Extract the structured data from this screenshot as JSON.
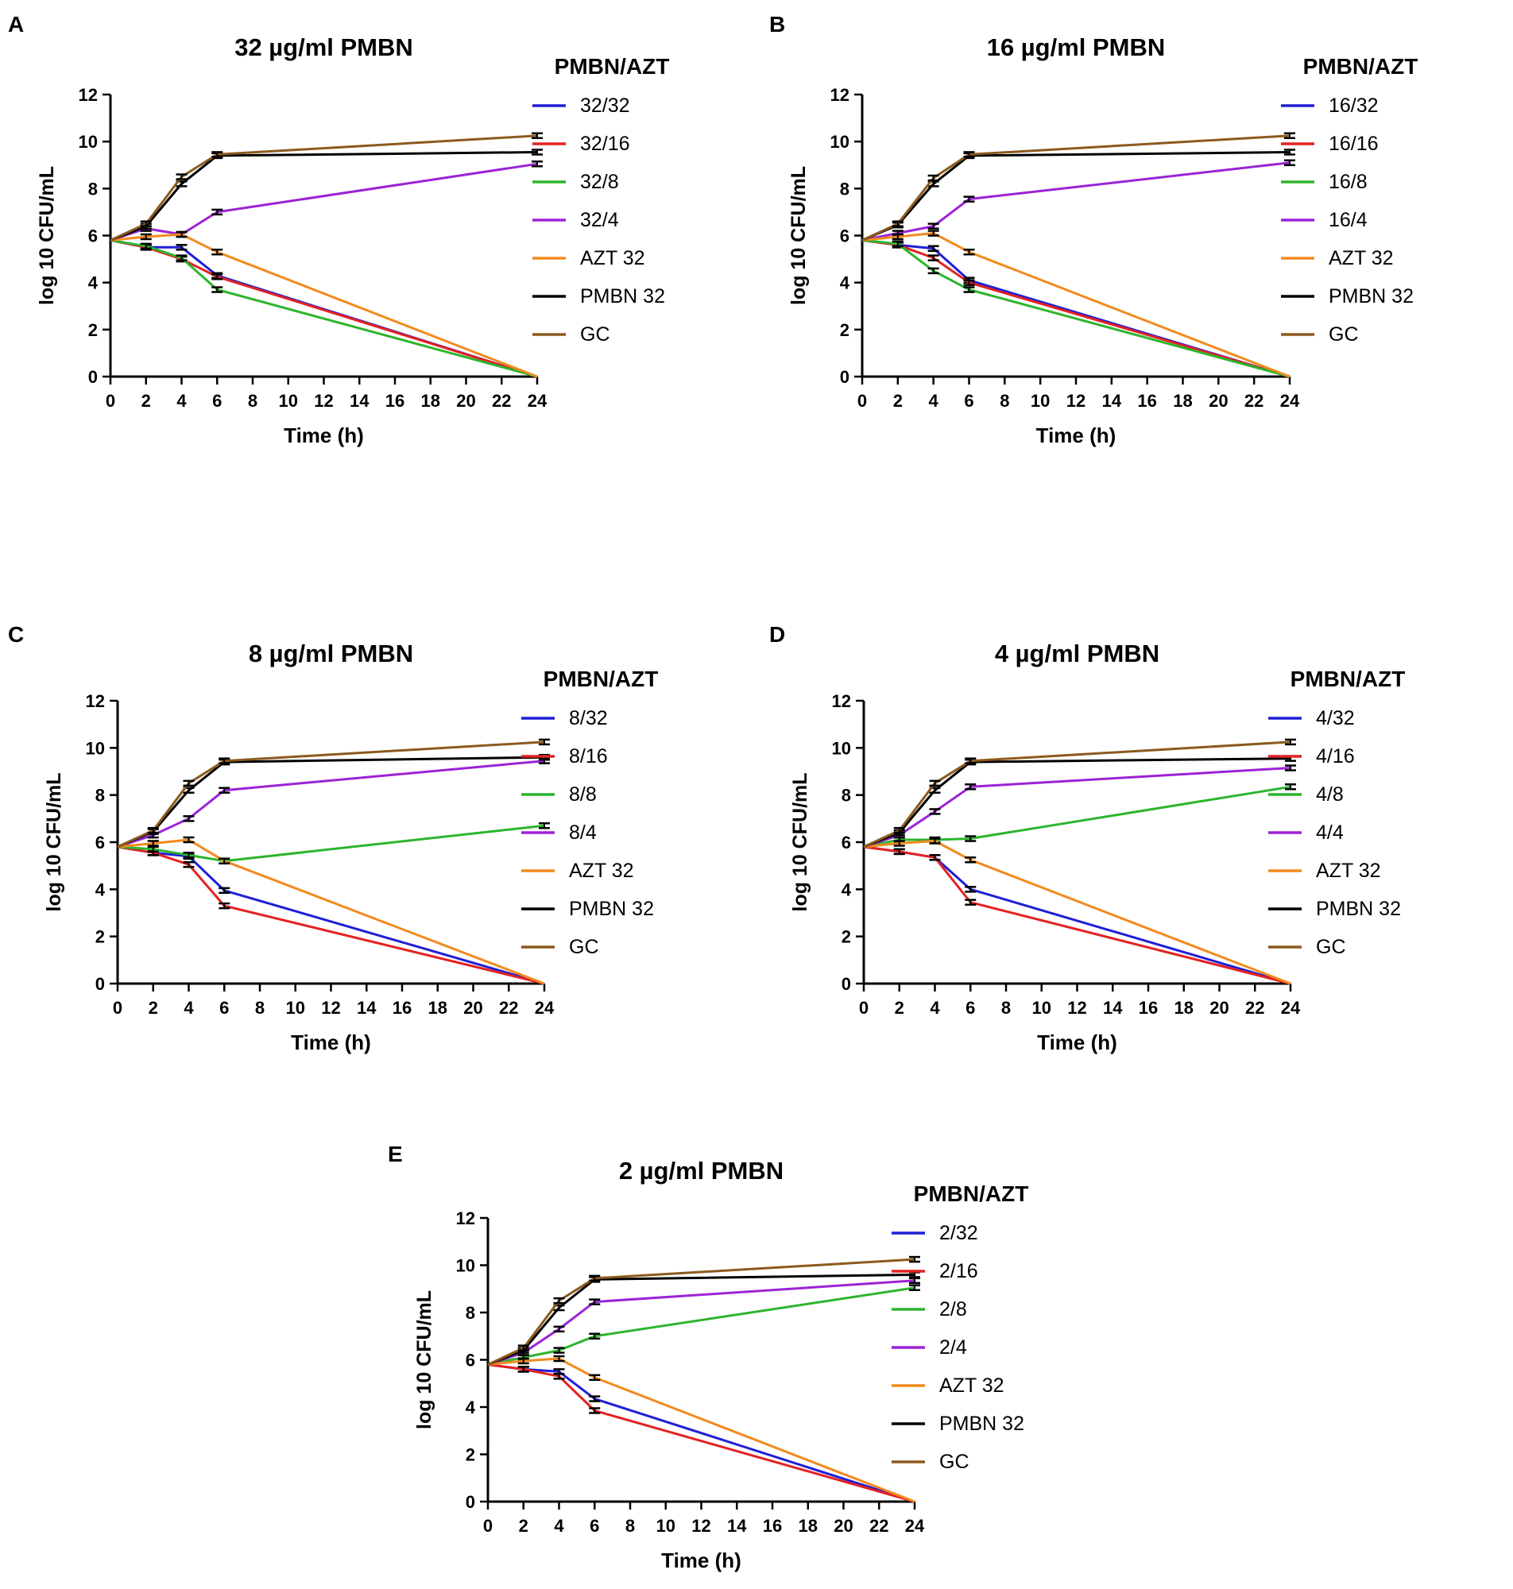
{
  "figure": {
    "panels": [
      "A",
      "B",
      "C",
      "D",
      "E"
    ]
  },
  "chart_data": [
    {
      "type": "line",
      "panel_label": "A",
      "title": "32 µg/ml PMBN",
      "xlabel": "Time (h)",
      "ylabel": "log 10 CFU/mL",
      "xlim": [
        0,
        24
      ],
      "ylim": [
        0,
        12
      ],
      "xticks": [
        0,
        2,
        4,
        6,
        8,
        10,
        12,
        14,
        16,
        18,
        20,
        22,
        24
      ],
      "yticks": [
        0,
        2,
        4,
        6,
        8,
        10,
        12
      ],
      "legend_title": "PMBN/AZT",
      "legend_position": "right",
      "x": [
        0,
        2,
        4,
        6,
        24
      ],
      "series": [
        {
          "name": "32/32",
          "color": "#1f1fd6",
          "values": [
            5.8,
            5.5,
            5.5,
            4.3,
            0
          ]
        },
        {
          "name": "32/16",
          "color": "#e32222",
          "values": [
            5.8,
            5.5,
            5.0,
            4.25,
            0
          ]
        },
        {
          "name": "32/8",
          "color": "#2db52d",
          "values": [
            5.8,
            5.55,
            5.05,
            3.7,
            0
          ]
        },
        {
          "name": "32/4",
          "color": "#9b23d6",
          "values": [
            5.8,
            6.3,
            6.05,
            7.0,
            9.05
          ]
        },
        {
          "name": "AZT 32",
          "color": "#f28a1e",
          "values": [
            5.8,
            5.95,
            6.05,
            5.3,
            0
          ]
        },
        {
          "name": "PMBN 32",
          "color": "#000000",
          "values": [
            5.8,
            6.4,
            8.2,
            9.4,
            9.55
          ]
        },
        {
          "name": "GC",
          "color": "#8b5a1f",
          "values": [
            5.8,
            6.5,
            8.5,
            9.45,
            10.25
          ]
        }
      ]
    },
    {
      "type": "line",
      "panel_label": "B",
      "title": "16 µg/ml PMBN",
      "xlabel": "Time (h)",
      "ylabel": "log 10 CFU/mL",
      "xlim": [
        0,
        24
      ],
      "ylim": [
        0,
        12
      ],
      "xticks": [
        0,
        2,
        4,
        6,
        8,
        10,
        12,
        14,
        16,
        18,
        20,
        22,
        24
      ],
      "yticks": [
        0,
        2,
        4,
        6,
        8,
        10,
        12
      ],
      "legend_title": "PMBN/AZT",
      "legend_position": "right",
      "x": [
        0,
        2,
        4,
        6,
        24
      ],
      "series": [
        {
          "name": "16/32",
          "color": "#1f1fd6",
          "values": [
            5.8,
            5.6,
            5.45,
            4.1,
            0
          ]
        },
        {
          "name": "16/16",
          "color": "#e32222",
          "values": [
            5.8,
            5.6,
            5.05,
            4.0,
            0
          ]
        },
        {
          "name": "16/8",
          "color": "#2db52d",
          "values": [
            5.8,
            5.65,
            4.5,
            3.7,
            0
          ]
        },
        {
          "name": "16/4",
          "color": "#9b23d6",
          "values": [
            5.8,
            6.1,
            6.4,
            7.55,
            9.1
          ]
        },
        {
          "name": "AZT 32",
          "color": "#f28a1e",
          "values": [
            5.8,
            5.95,
            6.1,
            5.3,
            0
          ]
        },
        {
          "name": "PMBN 32",
          "color": "#000000",
          "values": [
            5.8,
            6.45,
            8.2,
            9.4,
            9.55
          ]
        },
        {
          "name": "GC",
          "color": "#8b5a1f",
          "values": [
            5.8,
            6.5,
            8.45,
            9.45,
            10.25
          ]
        }
      ]
    },
    {
      "type": "line",
      "panel_label": "C",
      "title": "8 µg/ml PMBN",
      "xlabel": "Time (h)",
      "ylabel": "log 10 CFU/mL",
      "xlim": [
        0,
        24
      ],
      "ylim": [
        0,
        12
      ],
      "xticks": [
        0,
        2,
        4,
        6,
        8,
        10,
        12,
        14,
        16,
        18,
        20,
        22,
        24
      ],
      "yticks": [
        0,
        2,
        4,
        6,
        8,
        10,
        12
      ],
      "legend_title": "PMBN/AZT",
      "legend_position": "right",
      "x": [
        0,
        2,
        4,
        6,
        24
      ],
      "series": [
        {
          "name": "8/32",
          "color": "#1f1fd6",
          "values": [
            5.8,
            5.55,
            5.4,
            3.95,
            0
          ]
        },
        {
          "name": "8/16",
          "color": "#e32222",
          "values": [
            5.8,
            5.55,
            5.05,
            3.3,
            0
          ]
        },
        {
          "name": "8/8",
          "color": "#2db52d",
          "values": [
            5.8,
            5.7,
            5.45,
            5.2,
            6.7
          ]
        },
        {
          "name": "8/4",
          "color": "#9b23d6",
          "values": [
            5.8,
            6.3,
            7.0,
            8.2,
            9.45
          ]
        },
        {
          "name": "AZT 32",
          "color": "#f28a1e",
          "values": [
            5.8,
            5.95,
            6.1,
            5.2,
            0
          ]
        },
        {
          "name": "PMBN 32",
          "color": "#000000",
          "values": [
            5.8,
            6.45,
            8.2,
            9.4,
            9.6
          ]
        },
        {
          "name": "GC",
          "color": "#8b5a1f",
          "values": [
            5.8,
            6.5,
            8.5,
            9.45,
            10.25
          ]
        }
      ]
    },
    {
      "type": "line",
      "panel_label": "D",
      "title": "4 µg/ml PMBN",
      "xlabel": "Time (h)",
      "ylabel": "log 10 CFU/mL",
      "xlim": [
        0,
        24
      ],
      "ylim": [
        0,
        12
      ],
      "xticks": [
        0,
        2,
        4,
        6,
        8,
        10,
        12,
        14,
        16,
        18,
        20,
        22,
        24
      ],
      "yticks": [
        0,
        2,
        4,
        6,
        8,
        10,
        12
      ],
      "legend_title": "PMBN/AZT",
      "legend_position": "right",
      "x": [
        0,
        2,
        4,
        6,
        24
      ],
      "series": [
        {
          "name": "4/32",
          "color": "#1f1fd6",
          "values": [
            5.8,
            5.6,
            5.35,
            4.0,
            0
          ]
        },
        {
          "name": "4/16",
          "color": "#e32222",
          "values": [
            5.8,
            5.6,
            5.35,
            3.45,
            0
          ]
        },
        {
          "name": "4/8",
          "color": "#2db52d",
          "values": [
            5.8,
            6.1,
            6.1,
            6.15,
            8.35
          ]
        },
        {
          "name": "4/4",
          "color": "#9b23d6",
          "values": [
            5.8,
            6.3,
            7.3,
            8.35,
            9.15
          ]
        },
        {
          "name": "AZT 32",
          "color": "#f28a1e",
          "values": [
            5.8,
            5.95,
            6.05,
            5.25,
            0
          ]
        },
        {
          "name": "PMBN 32",
          "color": "#000000",
          "values": [
            5.8,
            6.4,
            8.2,
            9.4,
            9.55
          ]
        },
        {
          "name": "GC",
          "color": "#8b5a1f",
          "values": [
            5.8,
            6.5,
            8.5,
            9.45,
            10.25
          ]
        }
      ]
    },
    {
      "type": "line",
      "panel_label": "E",
      "title": "2 µg/ml PMBN",
      "xlabel": "Time (h)",
      "ylabel": "log 10 CFU/mL",
      "xlim": [
        0,
        24
      ],
      "ylim": [
        0,
        12
      ],
      "xticks": [
        0,
        2,
        4,
        6,
        8,
        10,
        12,
        14,
        16,
        18,
        20,
        22,
        24
      ],
      "yticks": [
        0,
        2,
        4,
        6,
        8,
        10,
        12
      ],
      "legend_title": "PMBN/AZT",
      "legend_position": "right",
      "x": [
        0,
        2,
        4,
        6,
        24
      ],
      "series": [
        {
          "name": "2/32",
          "color": "#1f1fd6",
          "values": [
            5.8,
            5.6,
            5.5,
            4.35,
            0
          ]
        },
        {
          "name": "2/16",
          "color": "#e32222",
          "values": [
            5.8,
            5.6,
            5.3,
            3.85,
            0
          ]
        },
        {
          "name": "2/8",
          "color": "#2db52d",
          "values": [
            5.8,
            6.1,
            6.4,
            7.0,
            9.05
          ]
        },
        {
          "name": "2/4",
          "color": "#9b23d6",
          "values": [
            5.8,
            6.3,
            7.3,
            8.45,
            9.35
          ]
        },
        {
          "name": "AZT 32",
          "color": "#f28a1e",
          "values": [
            5.8,
            5.95,
            6.05,
            5.25,
            0
          ]
        },
        {
          "name": "PMBN 32",
          "color": "#000000",
          "values": [
            5.8,
            6.4,
            8.2,
            9.4,
            9.6
          ]
        },
        {
          "name": "GC",
          "color": "#8b5a1f",
          "values": [
            5.8,
            6.5,
            8.5,
            9.45,
            10.25
          ]
        }
      ]
    }
  ]
}
